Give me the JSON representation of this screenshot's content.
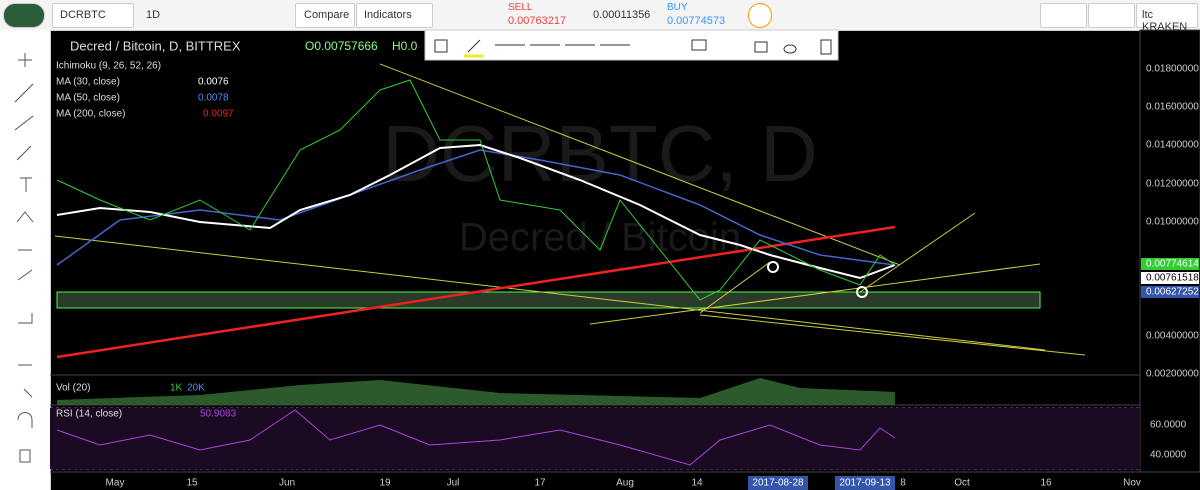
{
  "toolbar": {
    "symbol": "DCRBTC",
    "interval": "1D",
    "compare": "Compare",
    "indicators": "Indicators",
    "sell_label": "SELL",
    "sell_price": "0.00763217",
    "spread": "0.00011356",
    "buy_label": "BUY",
    "buy_price": "0.00774573",
    "broker": "ltc KRAKEN"
  },
  "legend": {
    "title": "Decred / Bitcoin, D, BITTREX",
    "ohlc": "O0.00757666",
    "ohlc_more": "H0.0",
    "studies": [
      {
        "name": "Ichimoku (9, 26, 52, 26)",
        "value": ""
      },
      {
        "name": "MA (30, close)",
        "value": "0.0076"
      },
      {
        "name": "MA (50, close)",
        "value": "0.0078"
      },
      {
        "name": "MA (200, close)",
        "value": "0.0097"
      }
    ]
  },
  "watermark": {
    "symbol": "DCRBTC, D",
    "name": "Decred / Bitcoin"
  },
  "price_axis": {
    "labels": [
      "0.01800000",
      "0.01600000",
      "0.01400000",
      "0.01200000",
      "0.01000000",
      "0.00400000",
      "0.00200000"
    ],
    "tags": [
      "0.00774614",
      "0.00761518",
      "0.00627252"
    ]
  },
  "volume": {
    "name": "Vol (20)",
    "v1": "1K",
    "v2": "20K"
  },
  "rsi": {
    "name": "RSI (14, close)",
    "value": "50.9083",
    "labels": [
      "60.0000",
      "40.0000"
    ]
  },
  "time_axis": [
    "May",
    "15",
    "Jun",
    "19",
    "Jul",
    "17",
    "Aug",
    "14",
    "2017-08-28",
    "2017-09-13",
    "8",
    "Oct",
    "16",
    "Nov"
  ]
}
